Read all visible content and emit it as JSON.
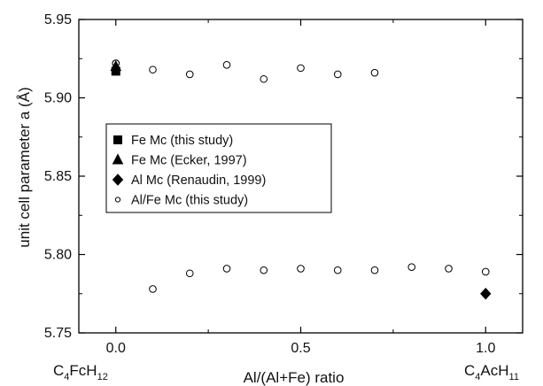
{
  "chart_data": {
    "type": "scatter",
    "xlabel": "Al/(Al+Fe) ratio",
    "ylabel": "unit cell parameter a (Å)",
    "xlim": [
      -0.1,
      1.1
    ],
    "ylim": [
      5.75,
      5.95
    ],
    "x_ticks": [
      0.0,
      0.5,
      1.0
    ],
    "x_tick_labels": [
      "0.0",
      "0.5",
      "1.0"
    ],
    "y_ticks": [
      5.75,
      5.8,
      5.85,
      5.9,
      5.95
    ],
    "y_tick_labels": [
      "5.75",
      "5.80",
      "5.85",
      "5.90",
      "5.95"
    ],
    "grid": false,
    "legend_position": "left",
    "end_labels": {
      "left": {
        "base": "C",
        "s1": "4",
        "mid": "FcH",
        "s2": "12"
      },
      "right": {
        "base": "C",
        "s1": "4",
        "mid": "AcH",
        "s2": "11"
      }
    },
    "series": [
      {
        "name": "Fe Mc (this study)",
        "marker": "square",
        "filled": true,
        "x": [
          0.0
        ],
        "y": [
          5.917
        ]
      },
      {
        "name": "Fe Mc (Ecker, 1997)",
        "marker": "triangle",
        "filled": true,
        "x": [
          0.0
        ],
        "y": [
          5.92
        ]
      },
      {
        "name": "Al Mc (Renaudin, 1999)",
        "marker": "diamond",
        "filled": true,
        "x": [
          1.0
        ],
        "y": [
          5.775
        ]
      },
      {
        "name": "Al/Fe Mc (this study)",
        "marker": "circle",
        "filled": false,
        "x": [
          0.0,
          0.1,
          0.2,
          0.3,
          0.4,
          0.5,
          0.6,
          0.7,
          0.0,
          0.1,
          0.2,
          0.3,
          0.4,
          0.5,
          0.6,
          0.7,
          0.8,
          0.9,
          1.0
        ],
        "y": [
          5.922,
          5.918,
          5.915,
          5.921,
          5.912,
          5.919,
          5.915,
          5.916,
          5.922,
          5.778,
          5.788,
          5.791,
          5.79,
          5.791,
          5.79,
          5.79,
          5.792,
          5.791,
          5.789
        ]
      }
    ]
  }
}
